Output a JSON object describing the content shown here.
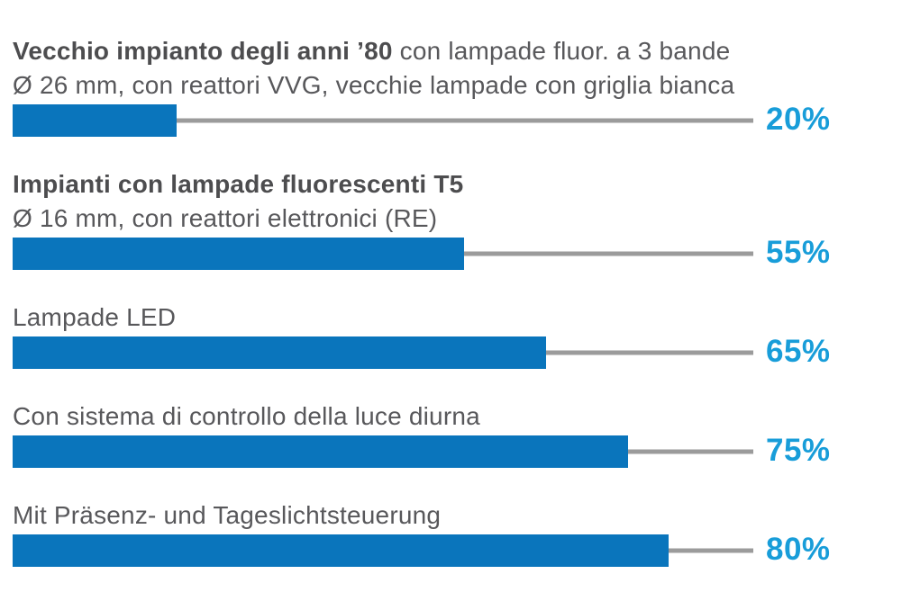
{
  "colors": {
    "bar": "#0a75bc",
    "value_text": "#189dd9",
    "connector_line": "#9b9b9b",
    "label_text": "#58585b",
    "label_bold_text": "#4d4d4f",
    "background": "#ffffff"
  },
  "chart_data": {
    "type": "bar",
    "orientation": "horizontal",
    "title": "",
    "xlabel": "",
    "ylabel": "",
    "xlim": [
      0,
      100
    ],
    "unit": "%",
    "grid": false,
    "legend": false,
    "value_label_position": "right-of-connector-line",
    "rows": [
      {
        "label_bold": "Vecchio impianto degli anni ’80",
        "label_regular": " con lampade fluor. a 3 bande",
        "sublabel": "Ø 26 mm, con reattori VVG, vecchie lampade con griglia bianca",
        "value": 20,
        "value_label": "20%"
      },
      {
        "label_bold": "Impianti con lampade fluorescenti T5",
        "label_regular": "",
        "sublabel": "Ø 16 mm, con reattori elettronici (RE)",
        "value": 55,
        "value_label": "55%"
      },
      {
        "label_bold": "",
        "label_regular": "Lampade LED",
        "sublabel": "",
        "value": 65,
        "value_label": "65%"
      },
      {
        "label_bold": "",
        "label_regular": "Con sistema di controllo della luce diurna",
        "sublabel": "",
        "value": 75,
        "value_label": "75%"
      },
      {
        "label_bold": "",
        "label_regular": "Mit Präsenz- und Tageslichtsteuerung",
        "sublabel": "",
        "value": 80,
        "value_label": "80%"
      }
    ]
  }
}
